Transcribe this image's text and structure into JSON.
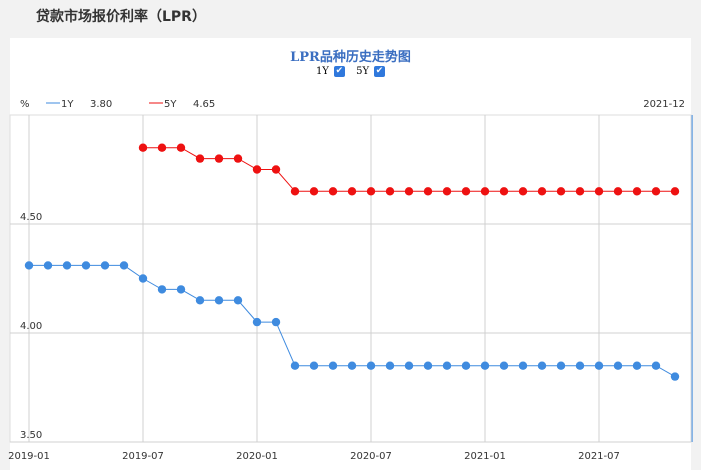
{
  "page": {
    "title": "贷款市场报价利率（LPR）"
  },
  "chart_data": {
    "type": "line",
    "title": "LPR品种历史走势图",
    "toggles": [
      {
        "label": "1Y",
        "checked": true
      },
      {
        "label": "5Y",
        "checked": true
      }
    ],
    "ylabel": "%",
    "ylim": [
      3.5,
      5.0
    ],
    "y_ticks": [
      3.5,
      4.0,
      4.5
    ],
    "y_tick_labels": [
      "3.50",
      "4.00",
      "4.50"
    ],
    "x_ticks": [
      {
        "index": 0,
        "label": "2019-01"
      },
      {
        "index": 6,
        "label": "2019-07"
      },
      {
        "index": 12,
        "label": "2020-01"
      },
      {
        "index": 18,
        "label": "2020-07"
      },
      {
        "index": 24,
        "label": "2021-01"
      },
      {
        "index": 30,
        "label": "2021-07"
      }
    ],
    "cursor": {
      "label": "2021-12",
      "index": 34.9
    },
    "series": [
      {
        "name": "1Y",
        "current_value": "3.80",
        "color": "#3f8bdf",
        "start_index": 0,
        "values": [
          4.31,
          4.31,
          4.31,
          4.31,
          4.31,
          4.31,
          4.25,
          4.2,
          4.2,
          4.15,
          4.15,
          4.15,
          4.05,
          4.05,
          3.85,
          3.85,
          3.85,
          3.85,
          3.85,
          3.85,
          3.85,
          3.85,
          3.85,
          3.85,
          3.85,
          3.85,
          3.85,
          3.85,
          3.85,
          3.85,
          3.85,
          3.85,
          3.85,
          3.85,
          3.8
        ]
      },
      {
        "name": "5Y",
        "current_value": "4.65",
        "color": "#ee1111",
        "start_index": 6,
        "values": [
          4.85,
          4.85,
          4.85,
          4.8,
          4.8,
          4.8,
          4.75,
          4.75,
          4.65,
          4.65,
          4.65,
          4.65,
          4.65,
          4.65,
          4.65,
          4.65,
          4.65,
          4.65,
          4.65,
          4.65,
          4.65,
          4.65,
          4.65,
          4.65,
          4.65,
          4.65,
          4.65,
          4.65,
          4.65
        ]
      }
    ]
  }
}
